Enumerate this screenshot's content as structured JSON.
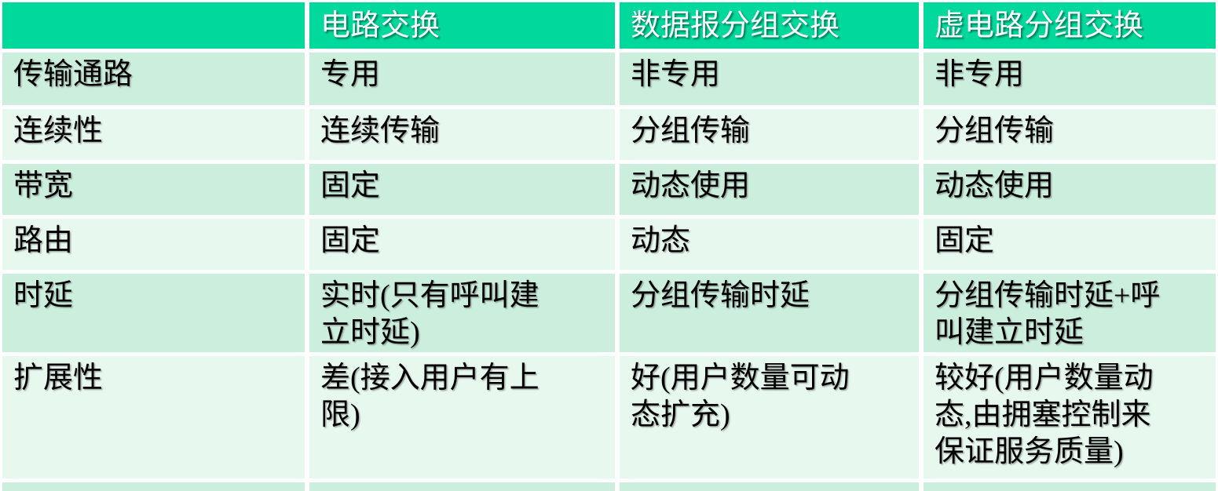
{
  "table": {
    "columns": [
      "",
      "电路交换",
      "数据报分组交换",
      "虚电路分组交换"
    ],
    "rows": [
      {
        "label": "传输通路",
        "cells": [
          "专用",
          "非专用",
          "非专用"
        ]
      },
      {
        "label": "连续性",
        "cells": [
          "连续传输",
          "分组传输",
          "分组传输"
        ]
      },
      {
        "label": "带宽",
        "cells": [
          "固定",
          "动态使用",
          "动态使用"
        ]
      },
      {
        "label": "路由",
        "cells": [
          "固定",
          "动态",
          "固定"
        ]
      },
      {
        "label": "时延",
        "cells": [
          "实时(只有呼叫建\n立时延)",
          "分组传输时延",
          "分组传输时延+呼\n叫建立时延"
        ]
      },
      {
        "label": "扩展性",
        "cells": [
          "差(接入用户有上\n限)",
          "好(用户数量可动\n态扩充)",
          "较好(用户数量动\n态,由拥塞控制来\n保证服务质量)"
        ]
      }
    ],
    "partial_row_cells": [
      "",
      "",
      "",
      ""
    ]
  },
  "colors": {
    "header_bg": "#00d89c",
    "header_text": "#ffffff",
    "row_alt_dark": "#cbeedd",
    "row_alt_light": "#e7f8ef",
    "body_text": "#000000",
    "grid_lines": "#ffffff"
  }
}
